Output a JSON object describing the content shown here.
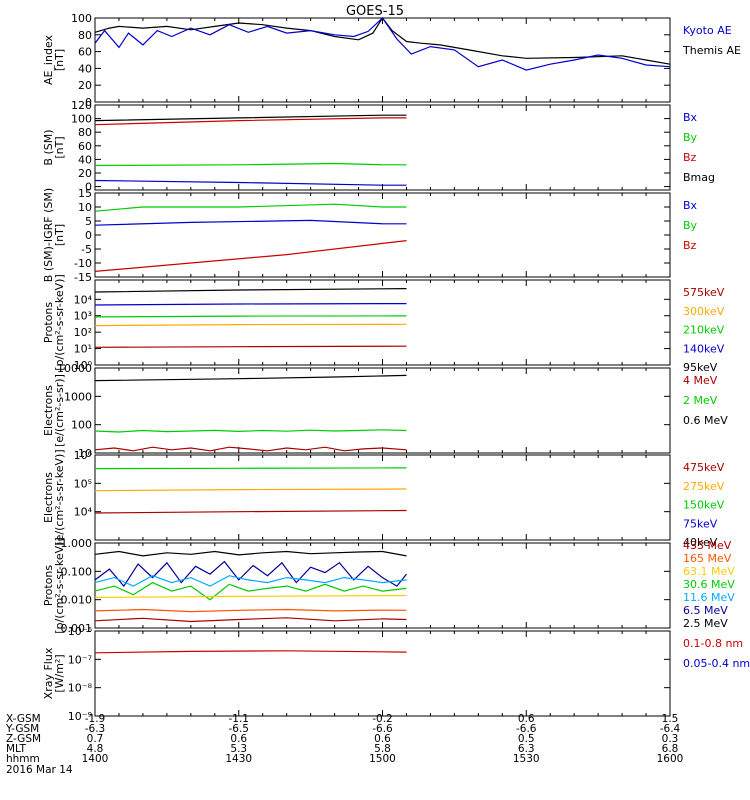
{
  "title": "GOES-15",
  "footer": {
    "row_labels": [
      "X-GSM",
      "Y-GSM",
      "Z-GSM",
      "MLT",
      "hhmm"
    ],
    "date": "2016 Mar 14",
    "columns": [
      [
        "-1.9",
        "-6.3",
        "0.7",
        "4.8",
        "1400"
      ],
      [
        "-1.1",
        "-6.5",
        "0.6",
        "5.3",
        "1430"
      ],
      [
        "-0.2",
        "-6.6",
        "0.6",
        "5.8",
        "1500"
      ],
      [
        "0.6",
        "-6.6",
        "0.5",
        "6.3",
        "1530"
      ],
      [
        "1.5",
        "-6.4",
        "0.3",
        "6.8",
        "1600"
      ]
    ]
  },
  "chart_data": [
    {
      "type": "line",
      "ylabel": [
        "AE_index",
        "[nT]"
      ],
      "yscale": "linear",
      "ylim": [
        0,
        100
      ],
      "yticks": [
        "0",
        "20",
        "40",
        "60",
        "80",
        "100"
      ],
      "legend": [
        {
          "label": "Kyoto AE",
          "color": "#0000cc"
        },
        {
          "label": "Themis AE",
          "color": "#000000"
        }
      ],
      "series": [
        {
          "name": "Themis AE",
          "color": "#000000",
          "x": [
            1400,
            1403,
            1405,
            1410,
            1415,
            1420,
            1425,
            1430,
            1435,
            1440,
            1445,
            1450,
            1455,
            1458,
            1500,
            1502,
            1505,
            1508,
            1512,
            1518,
            1525,
            1530,
            1540,
            1550,
            1555,
            1600
          ],
          "y": [
            83,
            88,
            90,
            88,
            90,
            86,
            90,
            94,
            92,
            88,
            85,
            78,
            74,
            82,
            100,
            85,
            72,
            70,
            68,
            62,
            55,
            52,
            53,
            55,
            50,
            45
          ]
        },
        {
          "name": "Kyoto AE",
          "color": "#0000cc",
          "x": [
            1400,
            1402,
            1405,
            1407,
            1410,
            1413,
            1416,
            1420,
            1424,
            1428,
            1432,
            1436,
            1440,
            1445,
            1450,
            1454,
            1457,
            1500,
            1503,
            1506,
            1510,
            1515,
            1520,
            1525,
            1530,
            1535,
            1540,
            1545,
            1550,
            1555,
            1600
          ],
          "y": [
            70,
            85,
            65,
            82,
            68,
            85,
            78,
            88,
            80,
            92,
            83,
            90,
            82,
            85,
            80,
            78,
            84,
            100,
            75,
            57,
            66,
            62,
            42,
            50,
            38,
            45,
            50,
            56,
            52,
            44,
            42
          ]
        }
      ]
    },
    {
      "type": "line",
      "ylabel": [
        "B (SM)",
        "[nT]"
      ],
      "yscale": "linear",
      "ylim": [
        -5,
        120
      ],
      "yticks": [
        "0",
        "20",
        "40",
        "60",
        "80",
        "100",
        "120"
      ],
      "legend": [
        {
          "label": "Bx",
          "color": "#0000cc"
        },
        {
          "label": "By",
          "color": "#00cc00"
        },
        {
          "label": "Bz",
          "color": "#cc0000"
        },
        {
          "label": "Bmag",
          "color": "#000000"
        }
      ],
      "series": [
        {
          "name": "Bmag",
          "color": "#000000",
          "x": [
            1400,
            1430,
            1500,
            1505
          ],
          "y": [
            97,
            101,
            105,
            105
          ]
        },
        {
          "name": "Bz",
          "color": "#cc0000",
          "x": [
            1400,
            1430,
            1500,
            1505
          ],
          "y": [
            91,
            97,
            101,
            101
          ]
        },
        {
          "name": "By",
          "color": "#00cc00",
          "x": [
            1400,
            1430,
            1450,
            1500,
            1505
          ],
          "y": [
            31,
            32,
            34,
            32,
            32
          ]
        },
        {
          "name": "Bx",
          "color": "#0000cc",
          "x": [
            1400,
            1430,
            1500,
            1505
          ],
          "y": [
            9,
            6,
            2,
            2
          ]
        }
      ]
    },
    {
      "type": "line",
      "ylabel": [
        "B (SM)-IGRF (SM)",
        "[nT]"
      ],
      "yscale": "linear",
      "ylim": [
        -15,
        15
      ],
      "yticks": [
        "-15",
        "-10",
        "-5",
        "0",
        "5",
        "10",
        "15"
      ],
      "legend": [
        {
          "label": "Bx",
          "color": "#0000cc"
        },
        {
          "label": "By",
          "color": "#00cc00"
        },
        {
          "label": "Bz",
          "color": "#cc0000"
        }
      ],
      "series": [
        {
          "name": "By",
          "color": "#00cc00",
          "x": [
            1400,
            1410,
            1430,
            1450,
            1500,
            1505
          ],
          "y": [
            8.5,
            10,
            10,
            11,
            10,
            10
          ]
        },
        {
          "name": "Bx",
          "color": "#0000cc",
          "x": [
            1400,
            1420,
            1445,
            1500,
            1505
          ],
          "y": [
            3.5,
            4.5,
            5.2,
            4,
            4
          ]
        },
        {
          "name": "Bz",
          "color": "#cc0000",
          "x": [
            1400,
            1420,
            1440,
            1500,
            1505
          ],
          "y": [
            -13,
            -10,
            -7,
            -3,
            -2
          ]
        }
      ]
    },
    {
      "type": "line",
      "ylabel": [
        "Protons",
        "[p/(cm²-s-sr-keV)]"
      ],
      "yscale": "log",
      "ylim": [
        1,
        150000
      ],
      "yticks": [
        "10⁰",
        "10¹",
        "10²",
        "10³",
        "10⁴"
      ],
      "legend": [
        {
          "label": "575keV",
          "color": "#aa0000"
        },
        {
          "label": "300keV",
          "color": "#ffaa00"
        },
        {
          "label": "210keV",
          "color": "#00cc00"
        },
        {
          "label": "140keV",
          "color": "#0000cc"
        },
        {
          "label": "95keV",
          "color": "#000000"
        }
      ],
      "series": [
        {
          "name": "95keV",
          "color": "#000000",
          "x": [
            1400,
            1430,
            1505
          ],
          "y": [
            28000,
            37000,
            45000
          ]
        },
        {
          "name": "140keV",
          "color": "#0000cc",
          "x": [
            1400,
            1430,
            1505
          ],
          "y": [
            4500,
            5200,
            5500
          ]
        },
        {
          "name": "210keV",
          "color": "#00cc00",
          "x": [
            1400,
            1430,
            1505
          ],
          "y": [
            850,
            950,
            980
          ]
        },
        {
          "name": "300keV",
          "color": "#ffaa00",
          "x": [
            1400,
            1430,
            1505
          ],
          "y": [
            250,
            290,
            300
          ]
        },
        {
          "name": "575keV",
          "color": "#aa0000",
          "x": [
            1400,
            1430,
            1505
          ],
          "y": [
            12,
            13,
            14
          ]
        }
      ]
    },
    {
      "type": "line",
      "ylabel": [
        "Electrons",
        "[e/(cm²-s-sr)]"
      ],
      "yscale": "log",
      "ylim": [
        10,
        10000
      ],
      "yticks": [
        "10",
        "100",
        "1000",
        "10000"
      ],
      "legend": [
        {
          "label": "4 MeV",
          "color": "#aa0000"
        },
        {
          "label": "2 MeV",
          "color": "#00cc00"
        },
        {
          "label": "0.6 MeV",
          "color": "#000000"
        }
      ],
      "series": [
        {
          "name": "0.6 MeV",
          "color": "#000000",
          "x": [
            1400,
            1430,
            1450,
            1505
          ],
          "y": [
            3600,
            4200,
            4800,
            5500
          ]
        },
        {
          "name": "2 MeV",
          "color": "#00cc00",
          "x": [
            1400,
            1405,
            1410,
            1415,
            1420,
            1425,
            1430,
            1435,
            1440,
            1445,
            1450,
            1455,
            1500,
            1505
          ],
          "y": [
            60,
            55,
            62,
            57,
            60,
            63,
            58,
            62,
            59,
            64,
            60,
            62,
            66,
            62
          ]
        },
        {
          "name": "4 MeV",
          "color": "#aa0000",
          "x": [
            1400,
            1404,
            1408,
            1412,
            1416,
            1420,
            1424,
            1428,
            1432,
            1436,
            1440,
            1444,
            1448,
            1452,
            1456,
            1500,
            1505
          ],
          "y": [
            13,
            15,
            12,
            16,
            13,
            15,
            12,
            16,
            14,
            12,
            15,
            13,
            16,
            12,
            14,
            15,
            13
          ]
        }
      ]
    },
    {
      "type": "line",
      "ylabel": [
        "Electrons",
        "[e/(cm²-s-sr-keV)]"
      ],
      "yscale": "log",
      "ylim": [
        1000,
        1000000
      ],
      "yticks": [
        "10⁴",
        "10⁵",
        "10⁶"
      ],
      "legend": [
        {
          "label": "475keV",
          "color": "#aa0000"
        },
        {
          "label": "275keV",
          "color": "#ffaa00"
        },
        {
          "label": "150keV",
          "color": "#00cc00"
        },
        {
          "label": "75keV",
          "color": "#0000cc"
        },
        {
          "label": "40keV",
          "color": "#000000"
        }
      ],
      "series": [
        {
          "name": "150keV",
          "color": "#00cc00",
          "x": [
            1400,
            1430,
            1505
          ],
          "y": [
            330000,
            340000,
            350000
          ]
        },
        {
          "name": "275keV",
          "color": "#ffaa00",
          "x": [
            1400,
            1430,
            1505
          ],
          "y": [
            55000,
            60000,
            63000
          ]
        },
        {
          "name": "475keV",
          "color": "#aa0000",
          "x": [
            1400,
            1430,
            1505
          ],
          "y": [
            9000,
            10000,
            11000
          ]
        }
      ]
    },
    {
      "type": "line",
      "ylabel": [
        "Protons",
        "[p/(cm²-s-sr-keV)]"
      ],
      "yscale": "log",
      "ylim": [
        0.001,
        1
      ],
      "yticks": [
        "0.001",
        "0.010",
        "0.100",
        "1.000"
      ],
      "legend": [
        {
          "label": "433 MeV",
          "color": "#aa0000"
        },
        {
          "label": "165 MeV",
          "color": "#ff5500"
        },
        {
          "label": "63.1 MeV",
          "color": "#ffcc00"
        },
        {
          "label": "30.6 MeV",
          "color": "#00cc00"
        },
        {
          "label": "11.6 MeV",
          "color": "#00aaff"
        },
        {
          "label": "6.5 MeV",
          "color": "#000099"
        },
        {
          "label": "2.5 MeV",
          "color": "#000000"
        }
      ],
      "series": [
        {
          "name": "2.5 MeV",
          "color": "#000000",
          "x": [
            1400,
            1405,
            1410,
            1415,
            1420,
            1425,
            1430,
            1435,
            1440,
            1445,
            1450,
            1455,
            1500,
            1505
          ],
          "y": [
            0.4,
            0.5,
            0.35,
            0.45,
            0.4,
            0.5,
            0.38,
            0.45,
            0.5,
            0.42,
            0.45,
            0.48,
            0.5,
            0.35
          ]
        },
        {
          "name": "6.5 MeV",
          "color": "#000099",
          "x": [
            1400,
            1403,
            1406,
            1409,
            1412,
            1415,
            1418,
            1421,
            1424,
            1427,
            1430,
            1433,
            1436,
            1439,
            1442,
            1445,
            1448,
            1451,
            1454,
            1457,
            1500,
            1503,
            1505
          ],
          "y": [
            0.05,
            0.12,
            0.03,
            0.18,
            0.06,
            0.2,
            0.04,
            0.15,
            0.08,
            0.22,
            0.05,
            0.16,
            0.07,
            0.2,
            0.04,
            0.14,
            0.09,
            0.2,
            0.05,
            0.15,
            0.06,
            0.03,
            0.08
          ]
        },
        {
          "name": "11.6 MeV",
          "color": "#00aaff",
          "x": [
            1400,
            1404,
            1408,
            1412,
            1416,
            1420,
            1424,
            1428,
            1432,
            1436,
            1440,
            1444,
            1448,
            1452,
            1456,
            1500,
            1505
          ],
          "y": [
            0.04,
            0.06,
            0.03,
            0.07,
            0.04,
            0.06,
            0.03,
            0.07,
            0.05,
            0.04,
            0.06,
            0.05,
            0.04,
            0.06,
            0.05,
            0.04,
            0.05
          ]
        },
        {
          "name": "30.6 MeV",
          "color": "#00cc00",
          "x": [
            1400,
            1404,
            1408,
            1412,
            1416,
            1420,
            1424,
            1428,
            1432,
            1436,
            1440,
            1444,
            1448,
            1452,
            1456,
            1500,
            1505
          ],
          "y": [
            0.02,
            0.03,
            0.015,
            0.04,
            0.02,
            0.03,
            0.01,
            0.035,
            0.02,
            0.025,
            0.03,
            0.02,
            0.035,
            0.02,
            0.03,
            0.02,
            0.025
          ]
        },
        {
          "name": "63.1 MeV",
          "color": "#ffcc00",
          "x": [
            1400,
            1430,
            1505
          ],
          "y": [
            0.012,
            0.013,
            0.014
          ]
        },
        {
          "name": "165 MeV",
          "color": "#ff5500",
          "x": [
            1400,
            1410,
            1420,
            1430,
            1440,
            1450,
            1500,
            1505
          ],
          "y": [
            0.004,
            0.0045,
            0.0038,
            0.0042,
            0.0045,
            0.004,
            0.0043,
            0.0042
          ]
        },
        {
          "name": "433 MeV",
          "color": "#aa0000",
          "x": [
            1400,
            1410,
            1420,
            1430,
            1440,
            1450,
            1500,
            1505
          ],
          "y": [
            0.0018,
            0.0022,
            0.0017,
            0.002,
            0.0023,
            0.0018,
            0.0021,
            0.002
          ]
        }
      ]
    },
    {
      "type": "line",
      "ylabel": [
        "Xray Flux",
        "[W/m²]"
      ],
      "yscale": "log",
      "ylim": [
        1e-09,
        1e-06
      ],
      "yticks": [
        "10⁻⁹",
        "10⁻⁸",
        "10⁻⁷",
        "10⁻⁶"
      ],
      "legend": [
        {
          "label": "0.1-0.8 nm",
          "color": "#cc0000"
        },
        {
          "label": "0.05-0.4 nm",
          "color": "#0000cc"
        }
      ],
      "series": [
        {
          "name": "0.1-0.8 nm",
          "color": "#cc0000",
          "x": [
            1400,
            1420,
            1440,
            1505
          ],
          "y": [
            1.7e-07,
            1.9e-07,
            2e-07,
            1.8e-07
          ]
        }
      ]
    }
  ]
}
